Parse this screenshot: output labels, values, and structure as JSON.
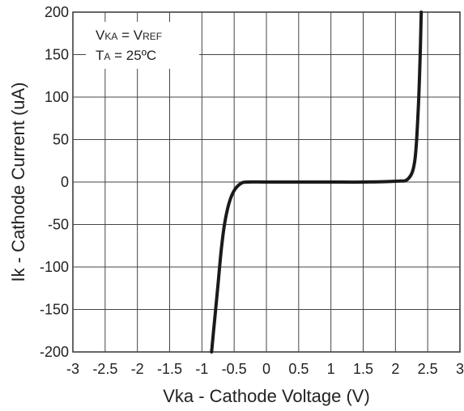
{
  "chart_data": {
    "type": "line",
    "xlabel": "Vka - Cathode Voltage (V)",
    "ylabel": "Ik - Cathode Current (uA)",
    "xlim": [
      -3,
      3
    ],
    "ylim": [
      -200,
      200
    ],
    "x_ticks": [
      "-3",
      "-2.5",
      "-2",
      "-1.5",
      "-1",
      "-0.5",
      "0",
      "0.5",
      "1",
      "1.5",
      "2",
      "2.5",
      "3"
    ],
    "y_ticks": [
      "200",
      "150",
      "100",
      "50",
      "0",
      "-50",
      "-100",
      "-150",
      "-200"
    ],
    "grid": true,
    "annotation": {
      "line1_main": "V",
      "line1_sub": "KA",
      "line1_mid": " = V",
      "line1_sub2": "REF",
      "line2_main": "T",
      "line2_sub": "A",
      "line2_rest": " = 25ºC"
    },
    "series": [
      {
        "color": "#1a1a1a",
        "points": [
          [
            -0.85,
            -200
          ],
          [
            -0.8,
            -160
          ],
          [
            -0.75,
            -120
          ],
          [
            -0.7,
            -80
          ],
          [
            -0.65,
            -50
          ],
          [
            -0.58,
            -25
          ],
          [
            -0.5,
            -10
          ],
          [
            -0.4,
            -2
          ],
          [
            -0.3,
            0
          ],
          [
            0,
            0
          ],
          [
            0.5,
            0
          ],
          [
            1,
            0
          ],
          [
            1.5,
            0
          ],
          [
            2,
            1
          ],
          [
            2.2,
            4
          ],
          [
            2.3,
            25
          ],
          [
            2.35,
            80
          ],
          [
            2.38,
            140
          ],
          [
            2.4,
            200
          ]
        ]
      }
    ]
  }
}
